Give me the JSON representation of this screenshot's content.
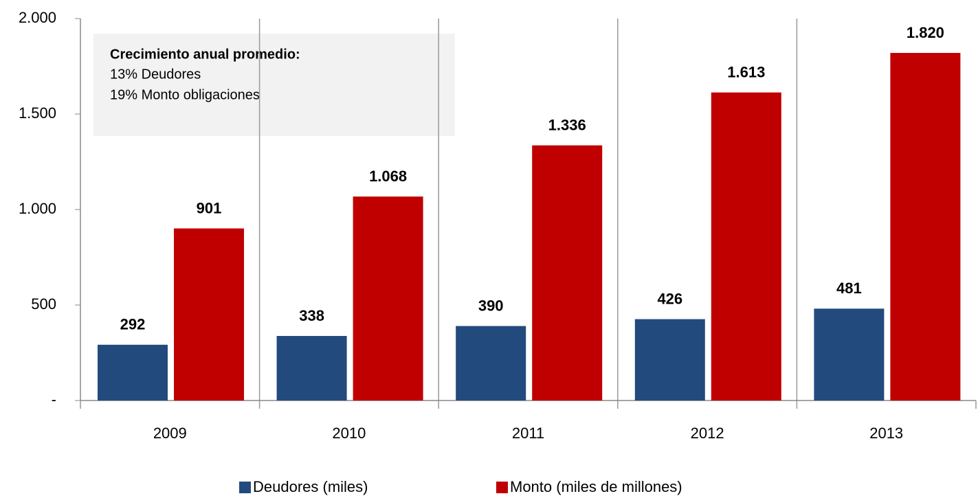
{
  "chart_data": {
    "type": "bar",
    "categories": [
      "2009",
      "2010",
      "2011",
      "2012",
      "2013"
    ],
    "series": [
      {
        "name": "Deudores (miles)",
        "color": "#234a7d",
        "values": [
          292,
          338,
          390,
          426,
          481
        ]
      },
      {
        "name": "Monto (miles de millones)",
        "color": "#c00000",
        "values": [
          901,
          1068,
          1336,
          1613,
          1820
        ],
        "value_labels": [
          "901",
          "1.068",
          "1.336",
          "1.613",
          "1.820"
        ]
      }
    ],
    "ylim": [
      0,
      2000
    ],
    "yticks": [
      {
        "value": 0,
        "label": "-"
      },
      500,
      {
        "value": 1000,
        "label": "1.000"
      },
      {
        "value": 1500,
        "label": "1.500"
      },
      {
        "value": 2000,
        "label": "2.000"
      }
    ],
    "legend": "bottom",
    "annotation": {
      "title": "Crecimiento anual promedio:",
      "lines": [
        "13% Deudores",
        "19% Monto obligaciones"
      ]
    }
  }
}
